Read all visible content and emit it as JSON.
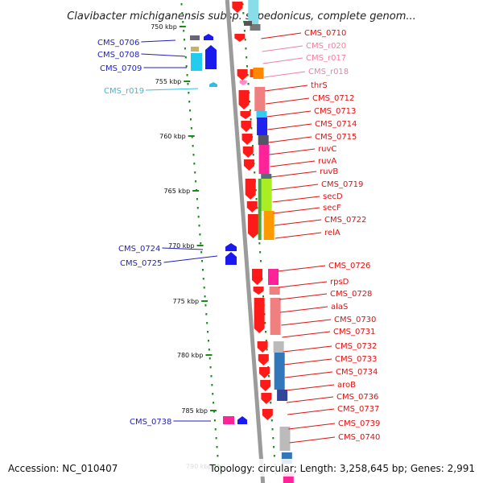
{
  "viewer": {
    "title": "Clavibacter michiganensis subsp. sepedonicus, complete genom...",
    "footer": {
      "accession": "Accession: NC_010407",
      "summary": "Topology: circular; Length: 3,258,645 bp; Genes: 2,991"
    }
  },
  "colors": {
    "backbone": "#9b9b9b",
    "scale_dots": "#1a8a1a",
    "forward_label": "#1f1fbf",
    "reverse_label": "#e01010",
    "rna_label_reverse": "#f080a0",
    "rna_label_forward": "#30c0e0"
  },
  "scale_ticks": [
    "750 kbp",
    "755 kbp",
    "760 kbp",
    "765 kbp",
    "770 kbp",
    "775 kbp",
    "780 kbp",
    "785 kbp",
    "790 kbp"
  ],
  "reverse_genes": [
    {
      "name": "CMS_0710",
      "kind": "cds"
    },
    {
      "name": "CMS_r020",
      "kind": "rna"
    },
    {
      "name": "CMS_r017",
      "kind": "rna"
    },
    {
      "name": "CMS_r018",
      "kind": "rna"
    },
    {
      "name": "thrS",
      "kind": "cds"
    },
    {
      "name": "CMS_0712",
      "kind": "cds"
    },
    {
      "name": "CMS_0713",
      "kind": "cds"
    },
    {
      "name": "CMS_0714",
      "kind": "cds"
    },
    {
      "name": "CMS_0715",
      "kind": "cds"
    },
    {
      "name": "ruvC",
      "kind": "cds"
    },
    {
      "name": "ruvA",
      "kind": "cds"
    },
    {
      "name": "ruvB",
      "kind": "cds"
    },
    {
      "name": "CMS_0719",
      "kind": "cds"
    },
    {
      "name": "secD",
      "kind": "cds"
    },
    {
      "name": "secF",
      "kind": "cds"
    },
    {
      "name": "CMS_0722",
      "kind": "cds"
    },
    {
      "name": "relA",
      "kind": "cds"
    },
    {
      "name": "CMS_0726",
      "kind": "cds"
    },
    {
      "name": "rpsD",
      "kind": "cds"
    },
    {
      "name": "CMS_0728",
      "kind": "cds"
    },
    {
      "name": "alaS",
      "kind": "cds"
    },
    {
      "name": "CMS_0730",
      "kind": "cds"
    },
    {
      "name": "CMS_0731",
      "kind": "cds"
    },
    {
      "name": "CMS_0732",
      "kind": "cds"
    },
    {
      "name": "CMS_0733",
      "kind": "cds"
    },
    {
      "name": "CMS_0734",
      "kind": "cds"
    },
    {
      "name": "aroB",
      "kind": "cds"
    },
    {
      "name": "CMS_0736",
      "kind": "cds"
    },
    {
      "name": "CMS_0737",
      "kind": "cds"
    },
    {
      "name": "CMS_0739",
      "kind": "cds"
    },
    {
      "name": "CMS_0740",
      "kind": "cds"
    }
  ],
  "forward_genes": [
    {
      "name": "CMS_0706",
      "kind": "cds"
    },
    {
      "name": "CMS_0708",
      "kind": "cds"
    },
    {
      "name": "CMS_0709",
      "kind": "cds"
    },
    {
      "name": "CMS_r019",
      "kind": "rna"
    },
    {
      "name": "CMS_0724",
      "kind": "cds"
    },
    {
      "name": "CMS_0725",
      "kind": "cds"
    },
    {
      "name": "CMS_0738",
      "kind": "cds"
    }
  ]
}
